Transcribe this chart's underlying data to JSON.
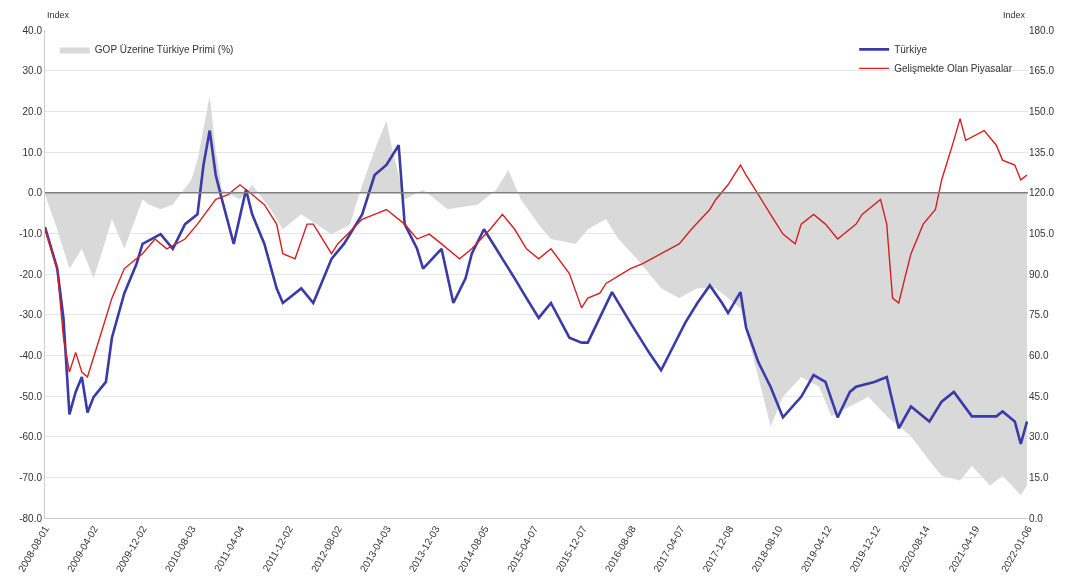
{
  "chart_data": {
    "type": "line",
    "ylabel": "Index",
    "y2label": "Index",
    "xlim": [
      "2008-08-01",
      "2022-01-06"
    ],
    "xticks": [
      "2008-08-01",
      "2009-04-02",
      "2009-12-02",
      "2010-08-03",
      "2011-04-04",
      "2011-12-02",
      "2012-08-02",
      "2013-04-03",
      "2013-12-03",
      "2014-08-05",
      "2015-04-07",
      "2015-12-07",
      "2016-08-08",
      "2017-04-07",
      "2017-12-08",
      "2018-08-10",
      "2019-04-12",
      "2019-12-12",
      "2020-08-14",
      "2021-04-19",
      "2022-01-06"
    ],
    "ylim": [
      -80,
      40
    ],
    "yticks": [
      {
        "value": -80,
        "label": "-80.0"
      },
      {
        "value": -70,
        "label": "-70.0"
      },
      {
        "value": -60,
        "label": "-60.0"
      },
      {
        "value": -50,
        "label": "-50.0"
      },
      {
        "value": -40,
        "label": "-40.0"
      },
      {
        "value": -30,
        "label": "-30.0"
      },
      {
        "value": -20,
        "label": "-20.0"
      },
      {
        "value": -10,
        "label": "-10.0"
      },
      {
        "value": 0,
        "label": "0.0"
      },
      {
        "value": 10,
        "label": "10.0"
      },
      {
        "value": 20,
        "label": "20.0"
      },
      {
        "value": 30,
        "label": "30.0"
      },
      {
        "value": 40,
        "label": "40.0"
      }
    ],
    "y2lim": [
      0,
      180
    ],
    "y2ticks": [
      {
        "value": 0,
        "label": "0.0"
      },
      {
        "value": 15,
        "label": "15.0"
      },
      {
        "value": 30,
        "label": "30.0"
      },
      {
        "value": 45,
        "label": "45.0"
      },
      {
        "value": 60,
        "label": "60.0"
      },
      {
        "value": 75,
        "label": "75.0"
      },
      {
        "value": 90,
        "label": "90.0"
      },
      {
        "value": 105,
        "label": "105.0"
      },
      {
        "value": 120,
        "label": "120.0"
      },
      {
        "value": 135,
        "label": "135.0"
      },
      {
        "value": 150,
        "label": "150.0"
      },
      {
        "value": 165,
        "label": "165.0"
      },
      {
        "value": 180,
        "label": "180.0"
      }
    ],
    "grid": "y",
    "legend": "top",
    "ref_lines": [
      {
        "axis": "y",
        "value": 0,
        "color": "#808080"
      }
    ],
    "series": [
      {
        "name": "GOP Üzerine Türkiye Primi (%)",
        "type": "area",
        "color": "#d9d9d9",
        "x": [
          "2008-08",
          "2008-10",
          "2008-12",
          "2009-02",
          "2009-04",
          "2009-06",
          "2009-07",
          "2009-09",
          "2009-12",
          "2010-01",
          "2010-03",
          "2010-05",
          "2010-08",
          "2010-09",
          "2010-11",
          "2010-12",
          "2011-01",
          "2011-04",
          "2011-06",
          "2011-09",
          "2011-11",
          "2012-02",
          "2012-07",
          "2012-10",
          "2012-12",
          "2013-02",
          "2013-04",
          "2013-05",
          "2013-07",
          "2013-10",
          "2014-02",
          "2014-07",
          "2014-10",
          "2014-12",
          "2015-02",
          "2015-05",
          "2015-07",
          "2015-11",
          "2016-01",
          "2016-04",
          "2016-06",
          "2016-09",
          "2017-01",
          "2017-04",
          "2017-07",
          "2017-10",
          "2018-02",
          "2018-05",
          "2018-07",
          "2018-09",
          "2018-12",
          "2019-03",
          "2019-05",
          "2019-08",
          "2019-11",
          "2020-02",
          "2020-06",
          "2020-09",
          "2020-11",
          "2021-02",
          "2021-04",
          "2021-07",
          "2021-09",
          "2021-12",
          "2022-01"
        ],
        "values": [
          -0.5,
          -9.0,
          -18.7,
          -13.8,
          -21.1,
          -11.4,
          -6.5,
          -13.8,
          -1.7,
          -2.9,
          -4.1,
          -2.9,
          3.2,
          8.0,
          23.8,
          10.4,
          0.7,
          -1.7,
          1.9,
          -4.1,
          -9.0,
          -5.3,
          -10.2,
          -7.8,
          1.9,
          10.4,
          17.7,
          10.4,
          -1.7,
          0.7,
          -4.1,
          -2.9,
          0.7,
          5.6,
          -1.7,
          -7.8,
          -11.4,
          -12.6,
          -9.0,
          -6.5,
          -11.4,
          -16.2,
          -23.5,
          -25.9,
          -23.5,
          -23.5,
          -28.4,
          -45.3,
          -57.5,
          -50.2,
          -45.3,
          -47.8,
          -55.0,
          -52.6,
          -50.2,
          -55.0,
          -59.9,
          -65.9,
          -69.6,
          -70.8,
          -67.2,
          -72.0,
          -69.6,
          -74.4,
          -72.0
        ]
      },
      {
        "name": "Türkiye",
        "axis": "y2",
        "color": "#3a3aa8",
        "x": [
          "2008-08",
          "2008-10",
          "2008-11",
          "2008-12",
          "2009-01",
          "2009-02",
          "2009-03",
          "2009-04",
          "2009-06",
          "2009-07",
          "2009-09",
          "2009-11",
          "2009-12",
          "2010-03",
          "2010-05",
          "2010-07",
          "2010-09",
          "2010-10",
          "2010-11",
          "2010-12",
          "2011-01",
          "2011-03",
          "2011-05",
          "2011-06",
          "2011-08",
          "2011-10",
          "2011-11",
          "2012-02",
          "2012-04",
          "2012-06",
          "2012-07",
          "2012-09",
          "2012-12",
          "2013-02",
          "2013-04",
          "2013-06",
          "2013-07",
          "2013-09",
          "2013-10",
          "2014-01",
          "2014-03",
          "2014-05",
          "2014-06",
          "2014-08",
          "2014-10",
          "2014-11",
          "2015-01",
          "2015-03",
          "2015-05",
          "2015-07",
          "2015-10",
          "2015-12",
          "2016-01",
          "2016-05",
          "2016-08",
          "2016-11",
          "2017-01",
          "2017-05",
          "2017-07",
          "2017-09",
          "2017-11",
          "2017-12",
          "2018-02",
          "2018-03",
          "2018-05",
          "2018-07",
          "2018-09",
          "2018-12",
          "2019-02",
          "2019-04",
          "2019-06",
          "2019-08",
          "2019-09",
          "2019-12",
          "2020-02",
          "2020-04",
          "2020-06",
          "2020-09",
          "2020-11",
          "2021-01",
          "2021-04",
          "2021-08",
          "2021-09",
          "2021-11",
          "2021-12",
          "2022-01"
        ],
        "values": [
          107.3,
          92.0,
          73.8,
          38.2,
          46.5,
          52.0,
          38.9,
          44.7,
          50.2,
          66.5,
          82.9,
          93.8,
          101.1,
          104.7,
          99.3,
          108.4,
          112.0,
          130.2,
          142.9,
          126.5,
          117.5,
          101.1,
          121.1,
          112.0,
          101.1,
          84.7,
          79.3,
          84.7,
          79.3,
          90.2,
          95.6,
          101.1,
          112.0,
          126.5,
          130.2,
          137.5,
          108.4,
          99.3,
          92.0,
          99.3,
          79.3,
          88.4,
          97.5,
          106.5,
          99.3,
          95.6,
          88.4,
          81.1,
          73.8,
          79.3,
          66.5,
          64.7,
          64.7,
          83.3,
          72.0,
          61.1,
          54.5,
          72.0,
          79.3,
          85.8,
          79.3,
          75.6,
          83.3,
          70.2,
          57.5,
          48.4,
          37.1,
          44.7,
          52.7,
          50.2,
          37.1,
          46.5,
          48.4,
          50.2,
          52.0,
          33.1,
          41.1,
          35.6,
          42.9,
          46.5,
          37.5,
          37.5,
          39.3,
          35.6,
          27.3,
          35.6
        ]
      },
      {
        "name": "Gelişmekte Olan Piyasalar",
        "axis": "y2",
        "color": "#d42020",
        "x": [
          "2008-08",
          "2008-10",
          "2008-11",
          "2008-12",
          "2009-01",
          "2009-02",
          "2009-03",
          "2009-05",
          "2009-07",
          "2009-09",
          "2009-12",
          "2010-02",
          "2010-04",
          "2010-07",
          "2010-09",
          "2010-12",
          "2011-02",
          "2011-04",
          "2011-06",
          "2011-08",
          "2011-10",
          "2011-11",
          "2012-01",
          "2012-03",
          "2012-04",
          "2012-07",
          "2012-08",
          "2012-12",
          "2013-02",
          "2013-04",
          "2013-07",
          "2013-09",
          "2013-11",
          "2014-01",
          "2014-04",
          "2014-06",
          "2014-09",
          "2014-11",
          "2015-01",
          "2015-03",
          "2015-05",
          "2015-07",
          "2015-10",
          "2015-12",
          "2016-01",
          "2016-03",
          "2016-04",
          "2016-08",
          "2016-10",
          "2017-01",
          "2017-04",
          "2017-06",
          "2017-09",
          "2017-10",
          "2017-12",
          "2018-02",
          "2018-03",
          "2018-04",
          "2018-07",
          "2018-09",
          "2018-11",
          "2018-12",
          "2019-02",
          "2019-04",
          "2019-06",
          "2019-09",
          "2019-10",
          "2020-01",
          "2020-02",
          "2020-03",
          "2020-04",
          "2020-05",
          "2020-06",
          "2020-08",
          "2020-10",
          "2020-11",
          "2021-01",
          "2021-02",
          "2021-03",
          "2021-06",
          "2021-08",
          "2021-09",
          "2021-11",
          "2021-12",
          "2022-01"
        ],
        "values": [
          106.5,
          92.0,
          66.5,
          53.8,
          61.1,
          53.8,
          52.0,
          66.5,
          81.1,
          92.0,
          97.5,
          102.9,
          99.3,
          102.9,
          108.4,
          117.5,
          119.3,
          122.9,
          119.3,
          115.6,
          108.4,
          97.5,
          95.6,
          108.4,
          108.4,
          97.5,
          101.1,
          110.2,
          112.0,
          113.8,
          108.4,
          102.9,
          104.7,
          101.1,
          95.6,
          99.3,
          106.5,
          112.0,
          106.5,
          99.3,
          95.6,
          99.3,
          90.2,
          77.5,
          81.1,
          82.9,
          86.5,
          92.0,
          93.8,
          97.5,
          101.1,
          106.5,
          113.8,
          117.5,
          122.9,
          130.2,
          126.5,
          122.9,
          112.0,
          104.7,
          101.1,
          108.4,
          112.0,
          108.4,
          102.9,
          108.4,
          112.0,
          117.5,
          108.4,
          81.1,
          79.3,
          88.4,
          97.5,
          108.4,
          113.8,
          124.7,
          139.3,
          147.3,
          139.3,
          142.9,
          137.5,
          132.0,
          130.2,
          124.7,
          126.5
        ]
      }
    ]
  }
}
